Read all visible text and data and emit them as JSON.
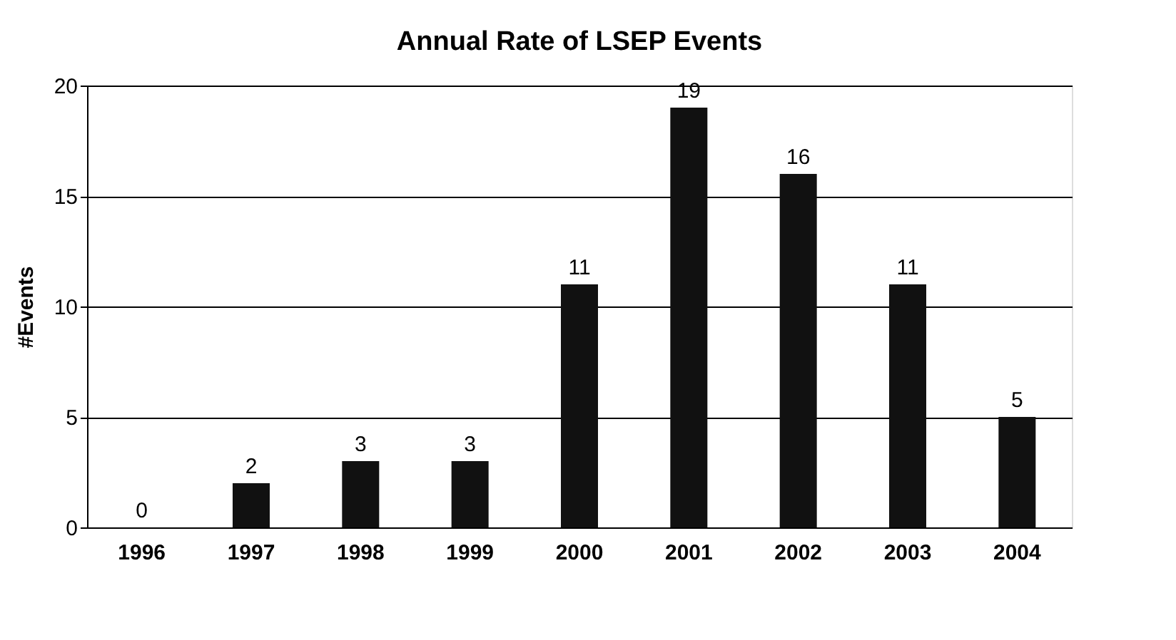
{
  "chart_data": {
    "type": "bar",
    "title": "Annual Rate of LSEP Events",
    "ylabel": "#Events",
    "categories": [
      "1996",
      "1997",
      "1998",
      "1999",
      "2000",
      "2001",
      "2002",
      "2003",
      "2004"
    ],
    "values": [
      0,
      2,
      3,
      3,
      11,
      19,
      16,
      11,
      5
    ],
    "color": "#111111",
    "ylim": [
      0,
      20
    ],
    "yticks": [
      0,
      5,
      10,
      15,
      20
    ],
    "grid": "y",
    "data_labels": true
  }
}
